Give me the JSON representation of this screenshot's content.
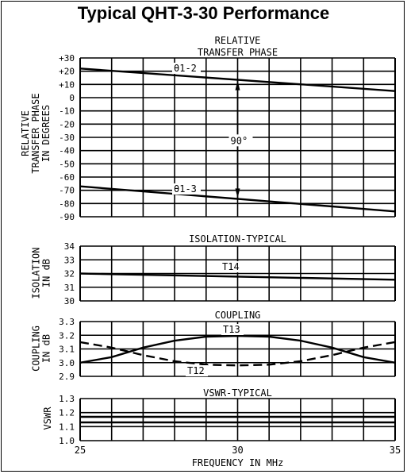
{
  "title": "Typical QHT-3-30 Performance",
  "x_axis": {
    "label": "FREQUENCY IN MHz",
    "ticks": [
      "25",
      "30",
      "35"
    ],
    "range": [
      25,
      35
    ]
  },
  "chart_data": [
    {
      "type": "line",
      "title": "RELATIVE TRANSFER PHASE",
      "title_lines": [
        "RELATIVE",
        "TRANSFER PHASE"
      ],
      "ylabel_lines": [
        "RELATIVE",
        "TRANSFER PHASE",
        "IN DEGREES"
      ],
      "ylim": [
        -90,
        30
      ],
      "yticks": [
        30,
        20,
        10,
        0,
        -10,
        -20,
        -30,
        -40,
        -50,
        -60,
        -70,
        -80,
        -90
      ],
      "ytick_labels": [
        "+30",
        "+20",
        "+10",
        "0",
        "-10",
        "-20",
        "-30",
        "-40",
        "-50",
        "-60",
        "-70",
        "-80",
        "-90"
      ],
      "grid": true,
      "series": [
        {
          "name": "θ1-2",
          "x": [
            25,
            35
          ],
          "y": [
            22,
            5
          ],
          "style": "solid"
        },
        {
          "name": "θ1-3",
          "x": [
            25,
            35
          ],
          "y": [
            -67,
            -86
          ],
          "style": "solid"
        }
      ],
      "annotation": {
        "text": "90°",
        "x": 30,
        "from": 14,
        "to": -77
      }
    },
    {
      "type": "line",
      "title": "ISOLATION-TYPICAL",
      "ylabel_lines": [
        "ISOLATION",
        "IN dB"
      ],
      "ylim": [
        30,
        34
      ],
      "yticks": [
        34,
        33,
        32,
        31,
        30
      ],
      "ytick_labels": [
        "34",
        "33",
        "32",
        "31",
        "30"
      ],
      "grid": true,
      "series": [
        {
          "name": "T14",
          "x": [
            25,
            35
          ],
          "y": [
            32.0,
            31.55
          ],
          "style": "solid"
        }
      ]
    },
    {
      "type": "line",
      "title": "COUPLING",
      "ylabel_lines": [
        "COUPLING",
        "IN dB"
      ],
      "ylim": [
        2.9,
        3.3
      ],
      "yticks": [
        3.3,
        3.2,
        3.1,
        3.0,
        2.9
      ],
      "ytick_labels": [
        "3.3",
        "3.2",
        "3.1",
        "3.0",
        "2.9"
      ],
      "grid": true,
      "series": [
        {
          "name": "T13",
          "x": [
            25,
            26,
            27,
            28,
            29,
            30,
            31,
            32,
            33,
            34,
            35
          ],
          "y": [
            3.0,
            3.04,
            3.11,
            3.16,
            3.19,
            3.195,
            3.19,
            3.16,
            3.11,
            3.04,
            3.0
          ],
          "style": "solid"
        },
        {
          "name": "T12",
          "x": [
            25,
            26,
            27,
            28,
            29,
            30,
            31,
            32,
            33,
            34,
            35
          ],
          "y": [
            3.15,
            3.11,
            3.055,
            3.01,
            2.985,
            2.98,
            2.985,
            3.01,
            3.055,
            3.11,
            3.15
          ],
          "style": "dashed"
        }
      ]
    },
    {
      "type": "line",
      "title": "VSWR-TYPICAL",
      "ylabel_lines": [
        "VSWR"
      ],
      "ylim": [
        1.0,
        1.3
      ],
      "yticks": [
        1.3,
        1.2,
        1.1,
        1.0
      ],
      "ytick_labels": [
        "1.3",
        "1.2",
        "1.1",
        "1.0"
      ],
      "grid": true,
      "series": [
        {
          "x": [
            25,
            35
          ],
          "y": [
            1.17,
            1.17
          ],
          "style": "solid"
        },
        {
          "x": [
            25,
            35
          ],
          "y": [
            1.13,
            1.13
          ],
          "style": "solid"
        }
      ]
    }
  ]
}
